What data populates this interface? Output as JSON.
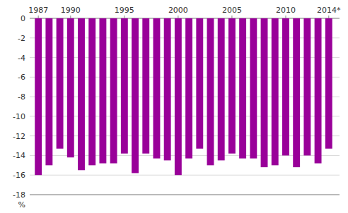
{
  "chart_data": {
    "type": "bar",
    "x": [
      1987,
      1988,
      1989,
      1990,
      1991,
      1992,
      1993,
      1994,
      1995,
      1996,
      1997,
      1998,
      1999,
      2000,
      2001,
      2002,
      2003,
      2004,
      2005,
      2006,
      2007,
      2008,
      2009,
      2010,
      2011,
      2012,
      2013,
      2014
    ],
    "values": [
      -16.0,
      -15.0,
      -13.3,
      -14.2,
      -15.5,
      -15.0,
      -14.8,
      -14.8,
      -13.8,
      -15.8,
      -13.8,
      -14.3,
      -14.5,
      -16.0,
      -14.3,
      -13.3,
      -15.0,
      -14.5,
      -13.8,
      -14.3,
      -14.3,
      -15.2,
      -15.0,
      -14.0,
      -15.2,
      -14.0,
      -14.8,
      -13.3
    ],
    "color": "#990099",
    "xlim": [
      1986.2,
      2015.0
    ],
    "xticks": [
      1987,
      1990,
      1995,
      2000,
      2005,
      2010,
      {
        "value": 2014,
        "label": "2014*"
      }
    ],
    "ylim": [
      -18,
      0
    ],
    "yticks": [
      0,
      -2,
      -4,
      -6,
      -8,
      -10,
      -12,
      -14,
      -16,
      -18
    ],
    "y_label": "%",
    "grid": true
  }
}
